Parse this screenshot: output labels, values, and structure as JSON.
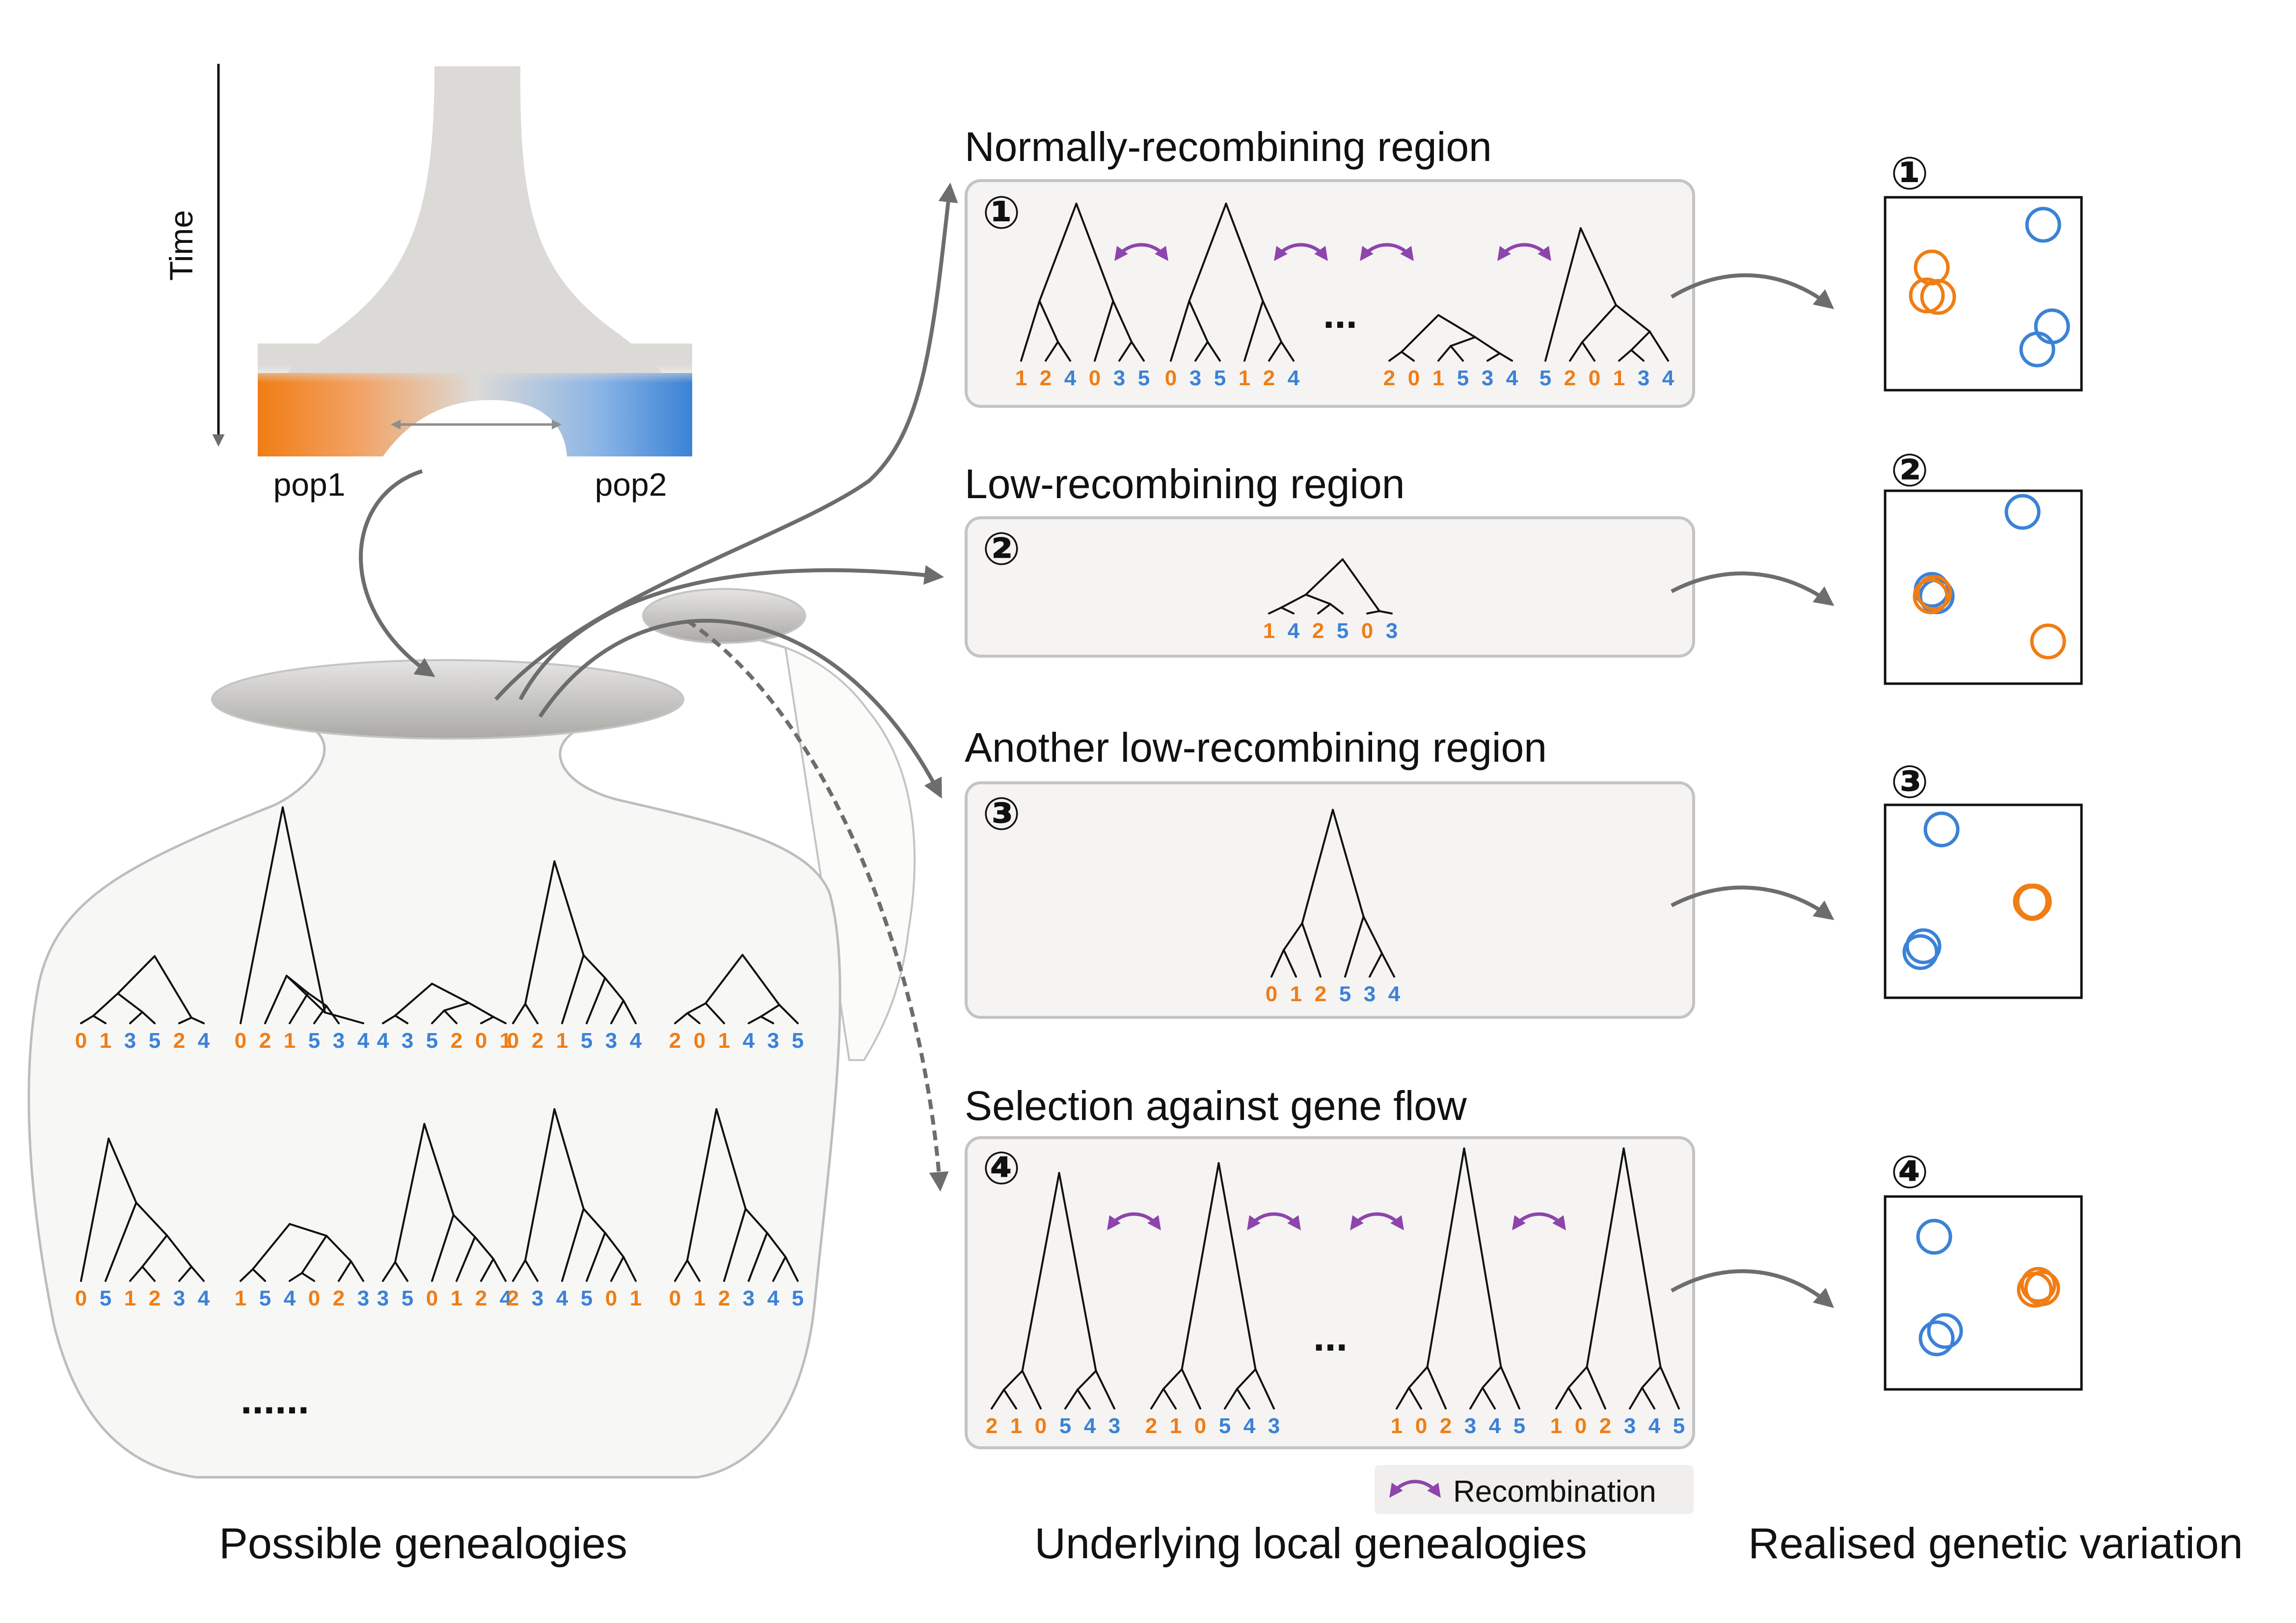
{
  "time_label": "Time",
  "pop1_label": "pop1",
  "pop2_label": "pop2",
  "colors": {
    "pop1": "#f07d15",
    "pop2": "#3b82d6",
    "arrow": "#6d6d6d",
    "recombination": "#8e44ad",
    "panel_bg": "#f5f4f2",
    "panel_border": "#c4c4c4"
  },
  "regions": [
    {
      "num": "①",
      "title": "Normally-recombining region"
    },
    {
      "num": "②",
      "title": "Low-recombining region"
    },
    {
      "num": "③",
      "title": "Another low-recombining region"
    },
    {
      "num": "④",
      "title": "Selection against gene flow"
    }
  ],
  "panel_ellipsis": "...",
  "jar_ellipsis": "......",
  "legend_label": "Recombination",
  "bottom_labels": {
    "left": "Possible genealogies",
    "middle": "Underlying local genealogies",
    "right": "Realised genetic variation"
  },
  "scatter_labels": [
    "①",
    "②",
    "③",
    "④"
  ],
  "pop1_tips": [
    "0",
    "1",
    "2"
  ],
  "pop2_tips": [
    "3",
    "4",
    "5"
  ],
  "jar_trees": [
    {
      "tips": [
        "0",
        "1",
        "3",
        "5",
        "2",
        "4"
      ],
      "shape": "tall2"
    },
    {
      "tips": [
        "0",
        "2",
        "1",
        "5",
        "3",
        "4"
      ],
      "shape": "veryTall"
    },
    {
      "tips": [
        "4",
        "3",
        "5",
        "2",
        "0",
        "1"
      ],
      "shape": "flat"
    },
    {
      "tips": [
        "0",
        "2",
        "1",
        "5",
        "3",
        "4"
      ],
      "shape": "tall"
    },
    {
      "tips": [
        "2",
        "0",
        "1",
        "4",
        "3",
        "5"
      ],
      "shape": "mid"
    },
    {
      "tips": [
        "0",
        "5",
        "1",
        "2",
        "3",
        "4"
      ],
      "shape": "leftTall"
    },
    {
      "tips": [
        "1",
        "5",
        "4",
        "0",
        "2",
        "3"
      ],
      "shape": "flat2"
    },
    {
      "tips": [
        "3",
        "5",
        "0",
        "1",
        "2",
        "4"
      ],
      "shape": "tall"
    },
    {
      "tips": [
        "2",
        "3",
        "4",
        "5",
        "0",
        "1"
      ],
      "shape": "tall"
    },
    {
      "tips": [
        "0",
        "1",
        "2",
        "3",
        "4",
        "5"
      ],
      "shape": "tall"
    }
  ],
  "panel_trees": {
    "r1": [
      {
        "tips": [
          "1",
          "2",
          "4",
          "0",
          "3",
          "5"
        ],
        "shape": "p1a"
      },
      {
        "tips": [
          "0",
          "3",
          "5",
          "1",
          "2",
          "4"
        ],
        "shape": "p1a"
      },
      {
        "tips": [
          "2",
          "0",
          "1",
          "5",
          "3",
          "4"
        ],
        "shape": "flat"
      },
      {
        "tips": [
          "5",
          "2",
          "0",
          "1",
          "3",
          "4"
        ],
        "shape": "p1b"
      }
    ],
    "r2": [
      {
        "tips": [
          "1",
          "4",
          "2",
          "5",
          "0",
          "3"
        ],
        "shape": "flat3"
      }
    ],
    "r3": [
      {
        "tips": [
          "0",
          "1",
          "2",
          "5",
          "3",
          "4"
        ],
        "shape": "sym"
      }
    ],
    "r4": [
      {
        "tips": [
          "2",
          "1",
          "0",
          "5",
          "4",
          "3"
        ],
        "shape": "sel"
      },
      {
        "tips": [
          "2",
          "1",
          "0",
          "5",
          "4",
          "3"
        ],
        "shape": "sel"
      },
      {
        "tips": [
          "1",
          "0",
          "2",
          "3",
          "4",
          "5"
        ],
        "shape": "sel"
      },
      {
        "tips": [
          "1",
          "0",
          "2",
          "3",
          "4",
          "5"
        ],
        "shape": "sel"
      }
    ]
  }
}
